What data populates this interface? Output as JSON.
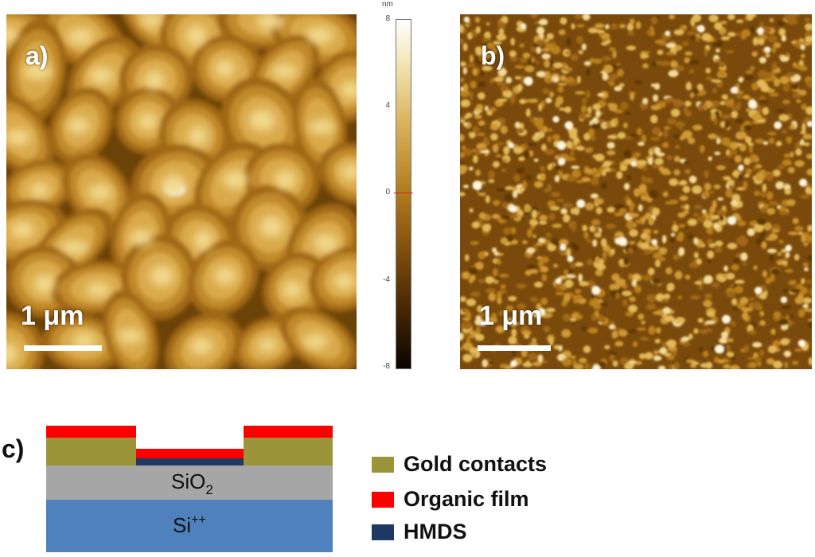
{
  "panels": {
    "a": {
      "label": "a)",
      "scale_bar": "1 μm"
    },
    "b": {
      "label": "b)",
      "scale_bar": "1 μm"
    }
  },
  "colorbar": {
    "unit": "nm",
    "ticks": [
      "8",
      "4",
      "0",
      "-4",
      "-8"
    ]
  },
  "schematic": {
    "label": "c)",
    "sio2_main": "SiO",
    "sio2_sub": "2",
    "si_main": "Si",
    "si_sup": "++"
  },
  "legend": [
    {
      "label": "Gold contacts",
      "color": "#9c9439"
    },
    {
      "label": "Organic film",
      "color": "#ff0000"
    },
    {
      "label": "HMDS",
      "color": "#1f3864"
    }
  ]
}
